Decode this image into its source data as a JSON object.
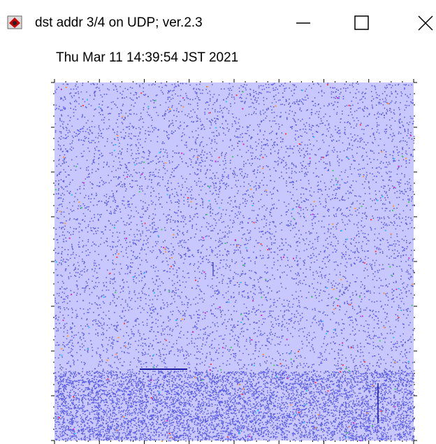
{
  "window": {
    "title": "dst addr 3/4 on UDP; ver.2.3"
  },
  "timestamp": "Thu Mar 11 14:39:54 JST 2021"
}
